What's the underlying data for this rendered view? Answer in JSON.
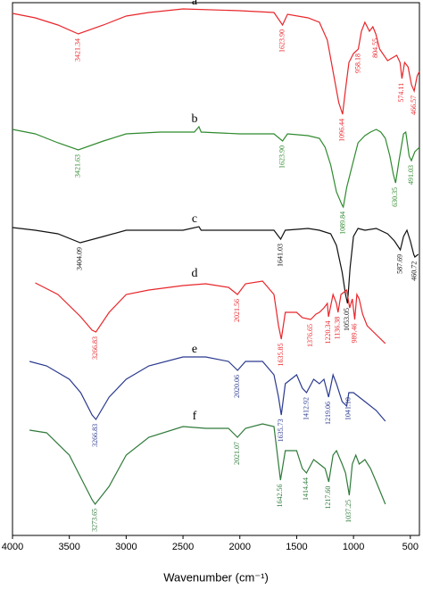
{
  "chart_data": {
    "type": "line",
    "xlabel": "Wavenumber (cm⁻¹)",
    "xlim": [
      4000,
      420
    ],
    "xticks": [
      4000,
      3500,
      3000,
      2500,
      2000,
      1500,
      1000,
      500
    ],
    "ylim": [
      0,
      597
    ],
    "series": [
      {
        "name": "a",
        "color": "#e8262b",
        "x": [
          4000,
          3800,
          3600,
          3421,
          3200,
          3000,
          2800,
          2500,
          2000,
          1700,
          1624,
          1580,
          1400,
          1300,
          1230,
          1180,
          1130,
          1096,
          1070,
          1040,
          1000,
          958,
          930,
          900,
          860,
          830,
          804,
          770,
          700,
          620,
          590,
          574,
          550,
          520,
          490,
          466,
          440,
          420
        ],
        "values": [
          585,
          580,
          572,
          562,
          572,
          582,
          586,
          590,
          588,
          586,
          572,
          584,
          580,
          575,
          555,
          520,
          485,
          472,
          500,
          530,
          540,
          545,
          565,
          575,
          565,
          570,
          562,
          545,
          532,
          538,
          530,
          512,
          530,
          525,
          505,
          498,
          515,
          520
        ],
        "peaks": [
          {
            "value": 3421.34,
            "label": "3421.34"
          },
          {
            "value": 1623.9,
            "label": "1623.90"
          },
          {
            "value": 1096.44,
            "label": "1096.44"
          },
          {
            "value": 958.18,
            "label": "958.18"
          },
          {
            "value": 804.55,
            "label": "804.55"
          },
          {
            "value": 574.11,
            "label": "574.11"
          },
          {
            "value": 466.57,
            "label": "466.57"
          }
        ]
      },
      {
        "name": "b",
        "color": "#2f8a2f",
        "x": [
          4000,
          3800,
          3600,
          3421,
          3200,
          3000,
          2700,
          2400,
          2360,
          2340,
          2000,
          1700,
          1624,
          1580,
          1400,
          1300,
          1250,
          1200,
          1150,
          1100,
          1090,
          1060,
          1000,
          960,
          900,
          850,
          800,
          760,
          720,
          680,
          650,
          630,
          600,
          560,
          540,
          510,
          491,
          460,
          420
        ],
        "values": [
          455,
          450,
          440,
          432,
          442,
          450,
          452,
          452,
          458,
          452,
          450,
          450,
          442,
          450,
          448,
          445,
          435,
          415,
          385,
          370,
          368,
          390,
          420,
          440,
          448,
          452,
          455,
          452,
          445,
          425,
          405,
          395,
          420,
          450,
          452,
          425,
          420,
          430,
          435
        ],
        "peaks": [
          {
            "value": 3421.63,
            "label": "3421.63"
          },
          {
            "value": 1623.9,
            "label": "1623.90"
          },
          {
            "value": 1089.84,
            "label": "1089.84"
          },
          {
            "value": 630.35,
            "label": "630.35"
          },
          {
            "value": 491.03,
            "label": "491.03"
          }
        ]
      },
      {
        "name": "c",
        "color": "#111111",
        "x": [
          4000,
          3800,
          3600,
          3404,
          3200,
          3000,
          2500,
          2360,
          2340,
          2000,
          1700,
          1641,
          1600,
          1400,
          1300,
          1200,
          1150,
          1100,
          1070,
          1053,
          1030,
          1000,
          960,
          900,
          800,
          700,
          640,
          588,
          560,
          530,
          500,
          470,
          460,
          430
        ],
        "values": [
          345,
          342,
          338,
          328,
          335,
          342,
          342,
          346,
          342,
          342,
          342,
          332,
          342,
          344,
          342,
          338,
          325,
          295,
          270,
          260,
          300,
          335,
          344,
          342,
          344,
          338,
          330,
          320,
          335,
          342,
          330,
          315,
          312,
          315
        ],
        "peaks": [
          {
            "value": 3404.09,
            "label": "3404.09"
          },
          {
            "value": 1641.03,
            "label": "1641.03"
          },
          {
            "value": 1053.05,
            "label": "1053.05"
          },
          {
            "value": 587.69,
            "label": "587.69"
          },
          {
            "value": 460.72,
            "label": "460.72"
          }
        ]
      },
      {
        "name": "d",
        "color": "#e8262b",
        "x": [
          3800,
          3600,
          3400,
          3300,
          3266,
          3150,
          3000,
          2800,
          2500,
          2300,
          2100,
          2021,
          1950,
          1800,
          1700,
          1660,
          1635,
          1600,
          1500,
          1450,
          1376,
          1330,
          1300,
          1260,
          1230,
          1220,
          1180,
          1150,
          1136,
          1110,
          1060,
          1034,
          1010,
          989,
          970,
          950,
          920,
          880,
          800,
          720
        ],
        "values": [
          283,
          270,
          245,
          230,
          228,
          250,
          270,
          275,
          280,
          282,
          278,
          270,
          282,
          285,
          270,
          235,
          220,
          250,
          250,
          244,
          242,
          248,
          250,
          255,
          260,
          245,
          270,
          260,
          250,
          270,
          275,
          255,
          265,
          242,
          270,
          265,
          248,
          235,
          225,
          215
        ],
        "peaks": [
          {
            "value": 2021.56,
            "label": "2021.56"
          },
          {
            "value": 3266.83,
            "label": "3266.83"
          },
          {
            "value": 1635.85,
            "label": "1635.85"
          },
          {
            "value": 1376.65,
            "label": "1376.65"
          },
          {
            "value": 1220.34,
            "label": "1220.34"
          },
          {
            "value": 1136.38,
            "label": "1136.38"
          },
          {
            "value": 989.46,
            "label": "989.46"
          }
        ]
      },
      {
        "name": "e",
        "color": "#2b3a8f",
        "x": [
          3850,
          3700,
          3500,
          3400,
          3300,
          3266,
          3150,
          3000,
          2800,
          2500,
          2300,
          2100,
          2020,
          1950,
          1800,
          1700,
          1660,
          1635,
          1600,
          1500,
          1450,
          1413,
          1350,
          1300,
          1260,
          1219,
          1180,
          1150,
          1100,
          1060,
          1041,
          1020,
          1000,
          950,
          900,
          800,
          720
        ],
        "values": [
          195,
          190,
          175,
          160,
          135,
          130,
          155,
          175,
          190,
          200,
          200,
          195,
          185,
          195,
          195,
          180,
          155,
          135,
          170,
          180,
          165,
          160,
          175,
          170,
          175,
          155,
          180,
          170,
          150,
          145,
          160,
          160,
          160,
          155,
          150,
          140,
          128
        ],
        "peaks": [
          {
            "value": 3266.83,
            "label": "3266.83"
          },
          {
            "value": 2020.06,
            "label": "2020.06"
          },
          {
            "value": 1635.73,
            "label": "1635.73"
          },
          {
            "value": 1412.92,
            "label": "1412.92"
          },
          {
            "value": 1219.06,
            "label": "1219.06"
          },
          {
            "value": 1041.1,
            "label": "1041.10"
          }
        ]
      },
      {
        "name": "f",
        "color": "#2f7a3a",
        "x": [
          3850,
          3700,
          3500,
          3400,
          3300,
          3273,
          3150,
          3000,
          2800,
          2500,
          2300,
          2100,
          2021,
          1950,
          1800,
          1700,
          1660,
          1642,
          1600,
          1500,
          1450,
          1414,
          1350,
          1300,
          1250,
          1218,
          1180,
          1150,
          1100,
          1070,
          1037,
          1010,
          980,
          950,
          900,
          850,
          800,
          720
        ],
        "values": [
          118,
          115,
          90,
          65,
          40,
          35,
          55,
          90,
          110,
          122,
          120,
          120,
          110,
          120,
          125,
          122,
          80,
          62,
          95,
          95,
          75,
          70,
          85,
          80,
          75,
          60,
          90,
          95,
          80,
          70,
          45,
          80,
          90,
          80,
          85,
          75,
          60,
          35
        ],
        "peaks": [
          {
            "value": 3273.65,
            "label": "3273.65"
          },
          {
            "value": 2021.07,
            "label": "2021.07"
          },
          {
            "value": 1642.56,
            "label": "1642.56"
          },
          {
            "value": 1414.44,
            "label": "1414.44"
          },
          {
            "value": 1217.6,
            "label": "1217.60"
          },
          {
            "value": 1037.25,
            "label": "1037.25"
          }
        ]
      }
    ]
  }
}
